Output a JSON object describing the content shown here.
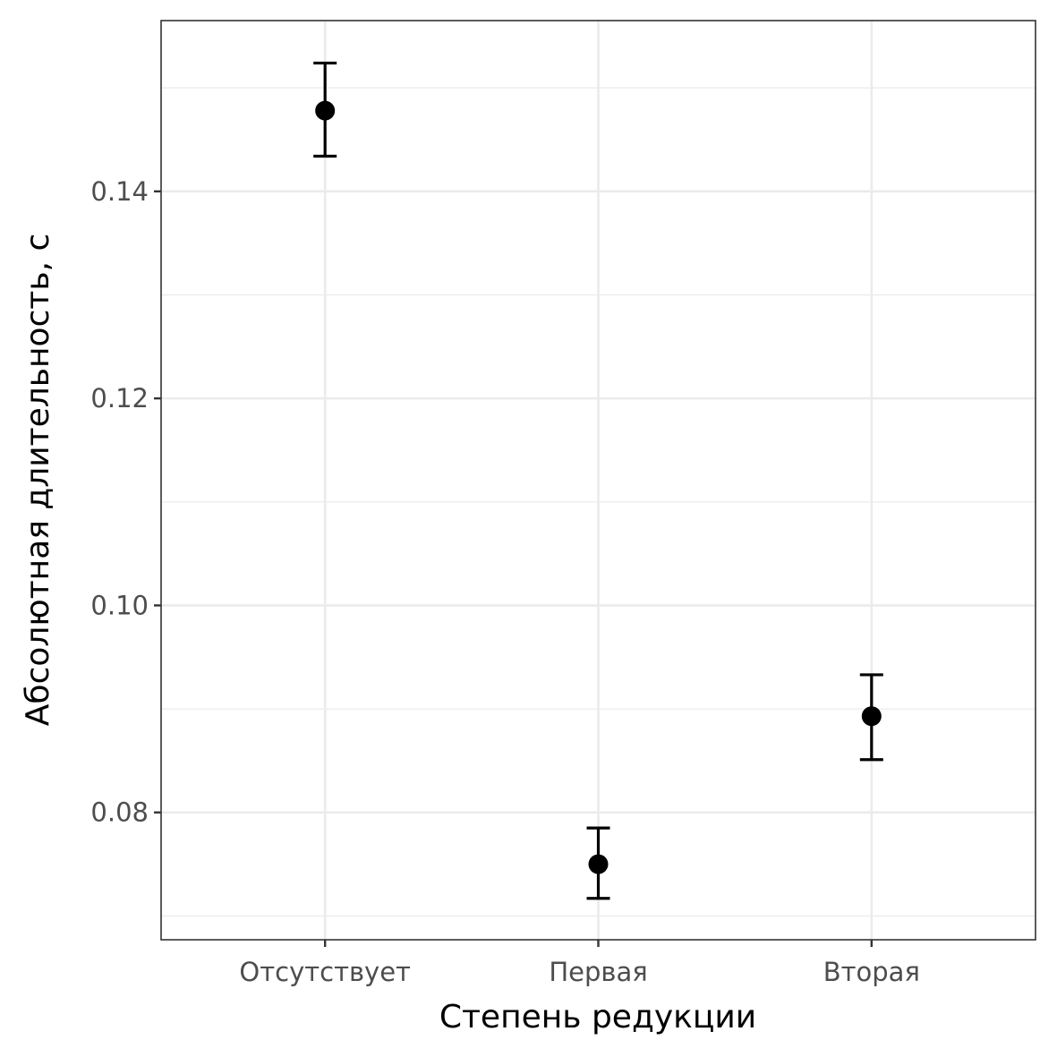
{
  "chart_data": {
    "type": "scatter",
    "title": "",
    "xlabel": "Степень редукции",
    "ylabel": "Абсолютная длительность, с",
    "categories": [
      "Отсутствует",
      "Первая",
      "Вторая"
    ],
    "values": [
      0.1478,
      0.075,
      0.0893
    ],
    "error_low": [
      0.1434,
      0.0717,
      0.0851
    ],
    "error_high": [
      0.1524,
      0.0785,
      0.0933
    ],
    "ylim": [
      0.0677,
      0.1565
    ],
    "yticks": [
      0.08,
      0.1,
      0.12,
      0.14
    ],
    "ytick_labels": [
      "0.08",
      "0.10",
      "0.12",
      "0.14"
    ],
    "yminor": [
      0.07,
      0.09,
      0.11,
      0.13,
      0.15
    ],
    "grid": true,
    "legend": "none"
  }
}
